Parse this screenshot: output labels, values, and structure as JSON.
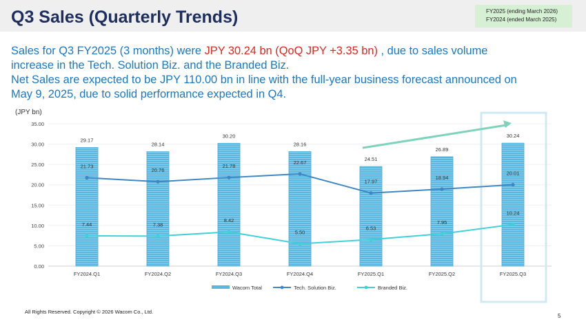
{
  "header": {
    "title": "Q3 Sales (Quarterly Trends)",
    "fy_notes": [
      "FY2025 (ending March 2026)",
      "FY2024 (ended March 2025)"
    ]
  },
  "summary": {
    "line1_a": "Sales for Q3 FY2025 (3 months) were ",
    "line1_highlight": "JPY 30.24 bn (QoQ JPY +3.35 bn)",
    "line1_b": " , due to sales volume",
    "line2": "increase in the Tech. Solution Biz. and the Branded Biz.",
    "line3": "Net Sales are expected to be JPY 110.00 bn in line with the full-year business forecast announced on",
    "line4": "May 9, 2025, due to solid performance expected in Q4."
  },
  "colors": {
    "title": "#1d2d5c",
    "summary_blue": "#1877c9",
    "highlight_red": "#e0261d",
    "bar": "#5ab8e0",
    "tech_line": "#3f86c4",
    "branded_line": "#3fd0d8",
    "trend_arrow": "#7fd3bd",
    "highlight_box": "#cfe9f3"
  },
  "chart_data": {
    "type": "bar",
    "ylabel": "(JPY bn)",
    "ylim": [
      0,
      35
    ],
    "yticks": [
      "0.00",
      "5.00",
      "10.00",
      "15.00",
      "20.00",
      "25.00",
      "30.00",
      "35.00"
    ],
    "categories": [
      "FY2024.Q1",
      "FY2024.Q2",
      "FY2024.Q3",
      "FY2024.Q4",
      "FY2025.Q1",
      "FY2025.Q2",
      "FY2025.Q3"
    ],
    "series": [
      {
        "name": "Wacom Total",
        "kind": "bar",
        "values": [
          29.17,
          28.14,
          30.2,
          28.16,
          24.51,
          26.89,
          30.24
        ],
        "labels": [
          "29.17",
          "28.14",
          "30.20",
          "28.16",
          "24.51",
          "26.89",
          "30.24"
        ]
      },
      {
        "name": "Tech. Solution Biz.",
        "kind": "line",
        "values": [
          21.73,
          20.76,
          21.78,
          22.67,
          17.97,
          18.94,
          20.01
        ],
        "labels": [
          "21.73",
          "20.76",
          "21.78",
          "22.67",
          "17.97",
          "18.94",
          "20.01"
        ]
      },
      {
        "name": "Branded Biz.",
        "kind": "line",
        "values": [
          7.44,
          7.38,
          8.42,
          5.5,
          6.53,
          7.95,
          10.24
        ],
        "labels": [
          "7.44",
          "7.38",
          "8.42",
          "5.50",
          "6.53",
          "7.95",
          "10.24"
        ]
      }
    ],
    "highlighted_category": "FY2025.Q3",
    "trend_arrow": {
      "from": "FY2025.Q1",
      "to": "FY2025.Q3"
    },
    "legend_position": "bottom-center"
  },
  "footer": {
    "copyright": "All Rights Reserved. Copyright © 2026 Wacom Co., Ltd.",
    "page": "5"
  }
}
